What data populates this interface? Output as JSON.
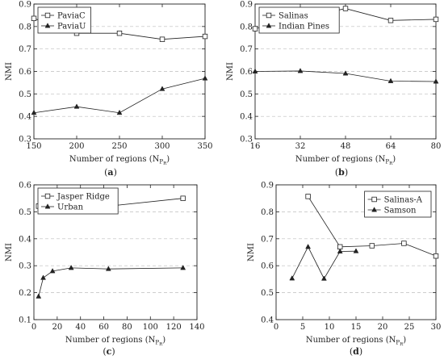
{
  "chart_data": [
    {
      "type": "line",
      "caption": "(a)",
      "xlabel": "Number of regions (N",
      "xlabel_sub": "P",
      "xlabel_subsub": "R",
      "xlabel_tail": ")",
      "ylabel": "NMI",
      "xlim": [
        150,
        350
      ],
      "ylim": [
        0.3,
        0.9
      ],
      "xticks": [
        150,
        200,
        250,
        300,
        350
      ],
      "yticks": [
        0.3,
        0.4,
        0.5,
        0.6,
        0.7,
        0.8,
        0.9
      ],
      "grid": "horizontal-dashed",
      "legend_position": "top-left",
      "series": [
        {
          "name": "PaviaC",
          "marker": "square",
          "x": [
            150,
            200,
            250,
            300,
            350
          ],
          "y": [
            0.836,
            0.77,
            0.77,
            0.743,
            0.756
          ]
        },
        {
          "name": "PaviaU",
          "marker": "triangle",
          "x": [
            150,
            200,
            250,
            300,
            350
          ],
          "y": [
            0.416,
            0.443,
            0.416,
            0.522,
            0.569
          ]
        }
      ]
    },
    {
      "type": "line",
      "caption": "(b)",
      "xlabel": "Number of regions (N",
      "xlabel_sub": "P",
      "xlabel_subsub": "R",
      "xlabel_tail": ")",
      "ylabel": "NMI",
      "xlim": [
        16,
        80
      ],
      "ylim": [
        0.3,
        0.9
      ],
      "xticks": [
        16,
        32,
        48,
        64,
        80
      ],
      "yticks": [
        0.3,
        0.4,
        0.5,
        0.6,
        0.7,
        0.8,
        0.9
      ],
      "grid": "horizontal-dashed",
      "legend_position": "top-left",
      "series": [
        {
          "name": "Salinas",
          "marker": "square",
          "x": [
            16,
            32,
            48,
            64,
            80
          ],
          "y": [
            0.79,
            0.836,
            0.88,
            0.827,
            0.832
          ]
        },
        {
          "name": "Indian Pines",
          "marker": "triangle",
          "x": [
            16,
            32,
            48,
            64,
            80
          ],
          "y": [
            0.6,
            0.602,
            0.591,
            0.557,
            0.555
          ]
        }
      ]
    },
    {
      "type": "line",
      "caption": "(c)",
      "xlabel": "Number of regions (N",
      "xlabel_sub": "P",
      "xlabel_subsub": "R",
      "xlabel_tail": ")",
      "ylabel": "NMI",
      "xlim": [
        0,
        140
      ],
      "ylim": [
        0.1,
        0.6
      ],
      "xticks": [
        0,
        20,
        40,
        60,
        80,
        100,
        120,
        140
      ],
      "yticks": [
        0.1,
        0.2,
        0.3,
        0.4,
        0.5,
        0.6
      ],
      "grid": "horizontal-dashed",
      "legend_position": "top-left",
      "series": [
        {
          "name": "Jasper Ridge",
          "marker": "square",
          "x": [
            4,
            8,
            16,
            32,
            64,
            128
          ],
          "y": [
            0.521,
            0.522,
            0.563,
            0.565,
            0.521,
            0.55
          ]
        },
        {
          "name": "Urban",
          "marker": "triangle",
          "x": [
            4,
            8,
            16,
            32,
            64,
            128
          ],
          "y": [
            0.186,
            0.255,
            0.28,
            0.292,
            0.288,
            0.292
          ]
        }
      ]
    },
    {
      "type": "line",
      "caption": "(d)",
      "xlabel": "Number of regions (N",
      "xlabel_sub": "P",
      "xlabel_subsub": "R",
      "xlabel_tail": ")",
      "ylabel": "NMI",
      "xlim": [
        0,
        30
      ],
      "ylim": [
        0.4,
        0.9
      ],
      "xticks": [
        0,
        5,
        10,
        15,
        20,
        25,
        30
      ],
      "yticks": [
        0.4,
        0.5,
        0.6,
        0.7,
        0.8,
        0.9
      ],
      "grid": "horizontal-dashed",
      "legend_position": "top-right",
      "series": [
        {
          "name": "Salinas-A",
          "marker": "square",
          "x": [
            6,
            12,
            18,
            24,
            30
          ],
          "y": [
            0.857,
            0.67,
            0.674,
            0.683,
            0.636
          ]
        },
        {
          "name": "Samson",
          "marker": "triangle",
          "x": [
            3,
            6,
            9,
            12,
            15
          ],
          "y": [
            0.553,
            0.67,
            0.552,
            0.653,
            0.654
          ]
        }
      ]
    }
  ]
}
